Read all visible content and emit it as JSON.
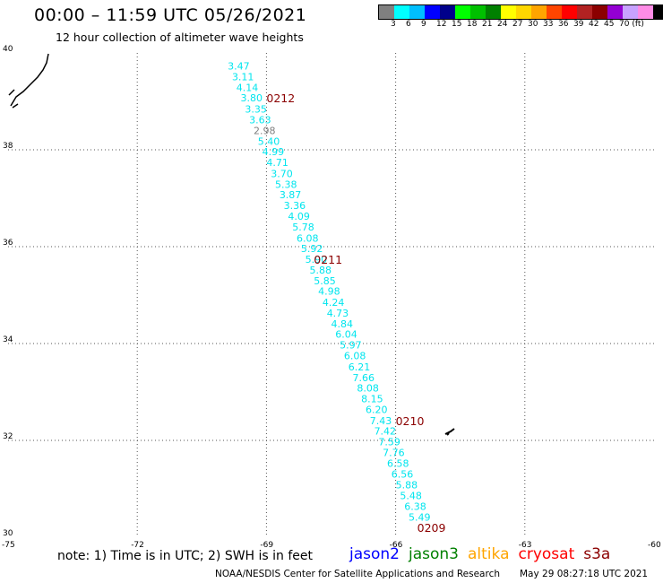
{
  "header": {
    "title": "00:00 – 11:59 UTC 05/26/2021",
    "subtitle": "12 hour collection of altimeter wave heights"
  },
  "colorbar": {
    "colors": [
      "#808080",
      "#00ffff",
      "#00bfff",
      "#0000ff",
      "#00008b",
      "#00ff00",
      "#00c000",
      "#008000",
      "#ffff00",
      "#ffd700",
      "#ffa500",
      "#ff4500",
      "#ff0000",
      "#b22222",
      "#8b0000",
      "#9400d3",
      "#c8a2ff",
      "#ff8ce6",
      "#000000"
    ],
    "labels": [
      "3",
      "6",
      "9",
      "12",
      "15",
      "18",
      "21",
      "24",
      "27",
      "30",
      "33",
      "36",
      "39",
      "42",
      "45",
      "70 (ft)"
    ]
  },
  "footer": {
    "note": "note: 1) Time is in UTC; 2) SWH is in feet",
    "credit": "NOAA/NESDIS Center for Satellite Applications and Research",
    "timestamp": "May 29 08:27:18 UTC 2021"
  },
  "legend": [
    {
      "name": "jason2",
      "color": "#0000ff"
    },
    {
      "name": "jason3",
      "color": "#008000"
    },
    {
      "name": "altika",
      "color": "#ffa500"
    },
    {
      "name": "cryosat",
      "color": "#ff0000"
    },
    {
      "name": "s3a",
      "color": "#8b0000"
    }
  ],
  "chart_data": {
    "type": "scatter",
    "title": "00:00 – 11:59 UTC 05/26/2021",
    "subtitle": "12 hour collection of altimeter wave heights",
    "xlim": [
      -75,
      -60
    ],
    "ylim": [
      30,
      40
    ],
    "x_ticks": [
      -75,
      -72,
      -69,
      -66,
      -63,
      -60
    ],
    "y_ticks": [
      30,
      32,
      34,
      36,
      38,
      40
    ],
    "x_tick_labels": [
      "-75",
      "-72",
      "-69",
      "-66",
      "-63",
      "-60"
    ],
    "y_tick_labels": [
      "30",
      "32",
      "34",
      "36",
      "38",
      "40"
    ],
    "grid": true,
    "point_color": "#00e5ee",
    "low_point_color": "#808080",
    "label_color": "#8b0000",
    "points": [
      {
        "lon": -69.9,
        "lat": 39.73,
        "swh": "3.47"
      },
      {
        "lon": -69.8,
        "lat": 39.51,
        "swh": "3.11"
      },
      {
        "lon": -69.7,
        "lat": 39.29,
        "swh": "4.14"
      },
      {
        "lon": -69.6,
        "lat": 39.07,
        "swh": "3.80"
      },
      {
        "lon": -69.5,
        "lat": 38.84,
        "swh": "3.35"
      },
      {
        "lon": -69.4,
        "lat": 38.62,
        "swh": "3.63"
      },
      {
        "lon": -69.3,
        "lat": 38.4,
        "swh": "2.98"
      },
      {
        "lon": -69.2,
        "lat": 38.18,
        "swh": "5.40"
      },
      {
        "lon": -69.1,
        "lat": 37.96,
        "swh": "4.99"
      },
      {
        "lon": -69.0,
        "lat": 37.74,
        "swh": "4.71"
      },
      {
        "lon": -68.9,
        "lat": 37.51,
        "swh": "3.70"
      },
      {
        "lon": -68.8,
        "lat": 37.29,
        "swh": "5.38"
      },
      {
        "lon": -68.7,
        "lat": 37.07,
        "swh": "3.87"
      },
      {
        "lon": -68.6,
        "lat": 36.85,
        "swh": "3.36"
      },
      {
        "lon": -68.5,
        "lat": 36.63,
        "swh": "4.09"
      },
      {
        "lon": -68.4,
        "lat": 36.41,
        "swh": "5.78"
      },
      {
        "lon": -68.3,
        "lat": 36.18,
        "swh": "6.08"
      },
      {
        "lon": -68.2,
        "lat": 35.96,
        "swh": "5.92"
      },
      {
        "lon": -68.1,
        "lat": 35.74,
        "swh": "5.90"
      },
      {
        "lon": -68.0,
        "lat": 35.52,
        "swh": "5.88"
      },
      {
        "lon": -67.9,
        "lat": 35.3,
        "swh": "5.85"
      },
      {
        "lon": -67.8,
        "lat": 35.08,
        "swh": "4.98"
      },
      {
        "lon": -67.7,
        "lat": 34.85,
        "swh": "4.24"
      },
      {
        "lon": -67.6,
        "lat": 34.63,
        "swh": "4.73"
      },
      {
        "lon": -67.5,
        "lat": 34.41,
        "swh": "4.84"
      },
      {
        "lon": -67.4,
        "lat": 34.19,
        "swh": "6.04"
      },
      {
        "lon": -67.3,
        "lat": 33.97,
        "swh": "5.97"
      },
      {
        "lon": -67.2,
        "lat": 33.75,
        "swh": "6.08"
      },
      {
        "lon": -67.1,
        "lat": 33.52,
        "swh": "6.21"
      },
      {
        "lon": -67.0,
        "lat": 33.3,
        "swh": "7.66"
      },
      {
        "lon": -66.9,
        "lat": 33.08,
        "swh": "8.08"
      },
      {
        "lon": -66.8,
        "lat": 32.86,
        "swh": "8.15"
      },
      {
        "lon": -66.7,
        "lat": 32.64,
        "swh": "6.20"
      },
      {
        "lon": -66.6,
        "lat": 32.41,
        "swh": "7.43"
      },
      {
        "lon": -66.5,
        "lat": 32.19,
        "swh": "7.42"
      },
      {
        "lon": -66.4,
        "lat": 31.97,
        "swh": "7.59"
      },
      {
        "lon": -66.3,
        "lat": 31.75,
        "swh": "7.76"
      },
      {
        "lon": -66.2,
        "lat": 31.53,
        "swh": "6.58"
      },
      {
        "lon": -66.1,
        "lat": 31.31,
        "swh": "6.56"
      },
      {
        "lon": -66.0,
        "lat": 31.08,
        "swh": "5.88"
      },
      {
        "lon": -65.9,
        "lat": 30.86,
        "swh": "5.48"
      },
      {
        "lon": -65.8,
        "lat": 30.64,
        "swh": "6.38"
      },
      {
        "lon": -65.7,
        "lat": 30.42,
        "swh": "5.49"
      }
    ],
    "time_labels": [
      {
        "lon": -69.0,
        "lat": 39.07,
        "text": "0212"
      },
      {
        "lon": -67.9,
        "lat": 35.74,
        "text": "0211"
      },
      {
        "lon": -66.0,
        "lat": 32.41,
        "text": "0210"
      },
      {
        "lon": -65.5,
        "lat": 30.2,
        "text": "0209"
      }
    ]
  }
}
